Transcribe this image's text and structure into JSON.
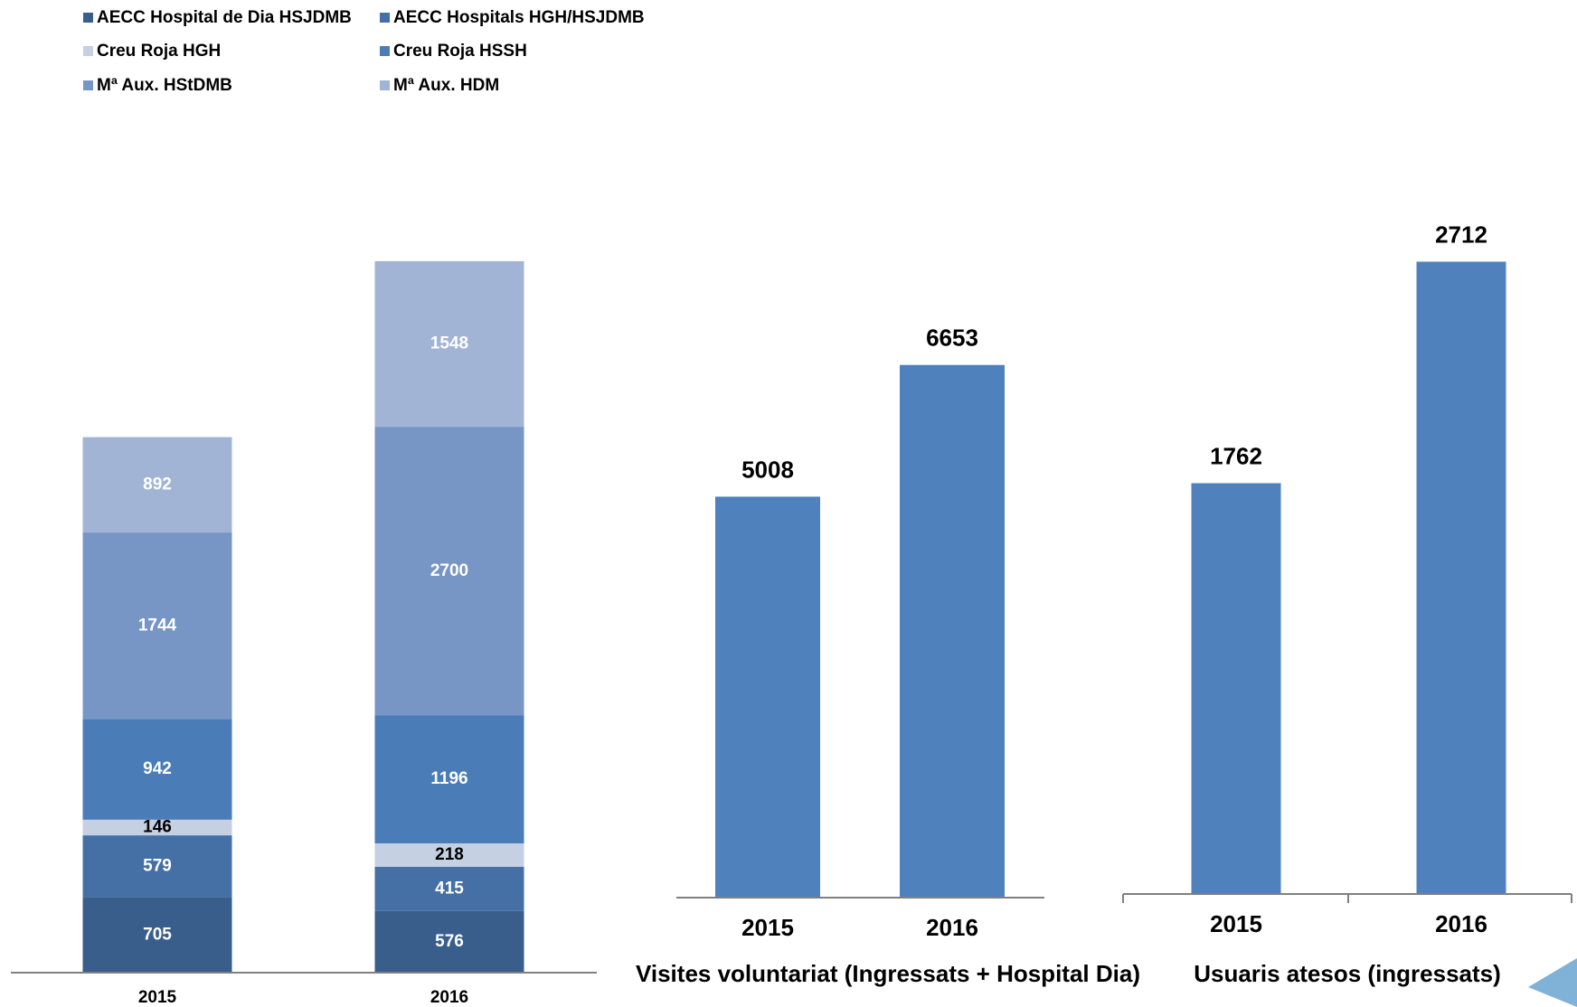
{
  "colors": {
    "aecc_dia": "#395E8C",
    "aecc_hosp": "#4470A6",
    "creu_hgh": "#C5D0E2",
    "creu_hssh": "#4A7DB8",
    "maux_hstdmb": "#7796C5",
    "maux_hdm": "#A2B4D5",
    "bar_blue": "#4F81BD",
    "axis": "#808080",
    "label_dark": "#000000",
    "label_light": "#ffffff"
  },
  "chart_data": [
    {
      "type": "bar",
      "stacked": true,
      "categories": [
        "2015",
        "2016"
      ],
      "series": [
        {
          "name": "AECC Hospital de Dia HSJDMB",
          "color": "#395E8C",
          "values": [
            705,
            576
          ]
        },
        {
          "name": "AECC Hospitals HGH/HSJDMB",
          "color": "#4470A6",
          "values": [
            579,
            415
          ]
        },
        {
          "name": "Creu Roja HGH",
          "color": "#C5D0E2",
          "values": [
            146,
            218
          ]
        },
        {
          "name": "Creu Roja HSSH",
          "color": "#4A7DB8",
          "values": [
            942,
            1196
          ]
        },
        {
          "name": "Mª Aux. HStDMB",
          "color": "#7796C5",
          "values": [
            1744,
            2700
          ]
        },
        {
          "name": "Mª Aux. HDM",
          "color": "#A2B4D5",
          "values": [
            892,
            1548
          ]
        }
      ],
      "legend": "top",
      "grid": false
    },
    {
      "type": "bar",
      "categories": [
        "2015",
        "2016"
      ],
      "values": [
        5008,
        6653
      ],
      "xlabel": "Visites voluntariat (Ingressats + Hospital Dia)",
      "color": "#4F81BD",
      "ylim": [
        0,
        7000
      ],
      "grid": false
    },
    {
      "type": "bar",
      "categories": [
        "2015",
        "2016"
      ],
      "values": [
        1762,
        2712
      ],
      "xlabel": "Usuaris atesos (ingressats)",
      "color": "#4F81BD",
      "ylim": [
        0,
        2900
      ],
      "grid": false
    }
  ]
}
